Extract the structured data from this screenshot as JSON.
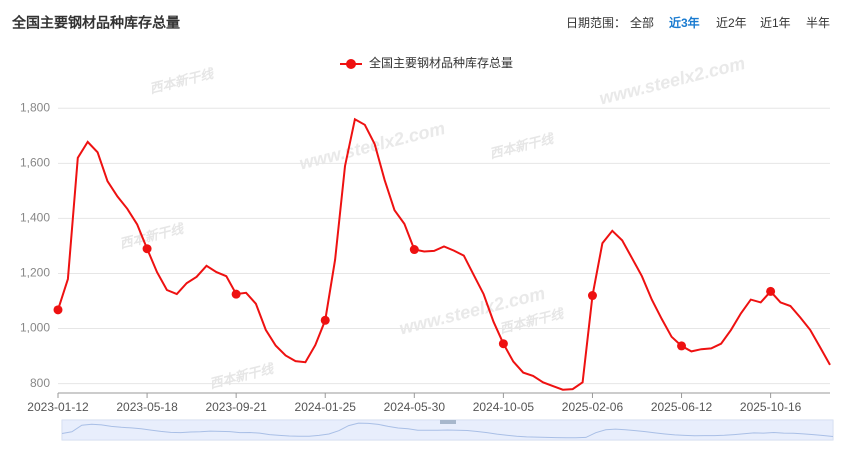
{
  "header": {
    "title": "全国主要钢材品种库存总量"
  },
  "date_range": {
    "label": "日期范围：",
    "options": [
      "全部",
      "近3年",
      "近2年",
      "近1年",
      "半年"
    ],
    "active": 1
  },
  "watermark": "www.steelx2.com",
  "watermark_logo": "西本新干线",
  "chart_data": {
    "type": "line",
    "categories": [
      "2023-01-12",
      null,
      null,
      null,
      null,
      null,
      null,
      null,
      null,
      "2023-05-18",
      null,
      null,
      null,
      null,
      null,
      null,
      null,
      null,
      "2023-09-21",
      null,
      null,
      null,
      null,
      null,
      null,
      null,
      null,
      "2024-01-25",
      null,
      null,
      null,
      null,
      null,
      null,
      null,
      null,
      "2024-05-30",
      null,
      null,
      null,
      null,
      null,
      null,
      null,
      null,
      "2024-10-05",
      null,
      null,
      null,
      null,
      null,
      null,
      null,
      null,
      "2025-02-06",
      null,
      null,
      null,
      null,
      null,
      null,
      null,
      null,
      "2025-06-12",
      null,
      null,
      null,
      null,
      null,
      null,
      null,
      null,
      "2025-10-16",
      null,
      null,
      null,
      null,
      null,
      null
    ],
    "series": [
      {
        "name": "全国主要钢材品种库存总量",
        "color": "#ee1111",
        "values": [
          1068,
          1180,
          1620,
          1678,
          1640,
          1535,
          1480,
          1435,
          1378,
          1290,
          1205,
          1140,
          1125,
          1165,
          1188,
          1228,
          1205,
          1190,
          1125,
          1130,
          1090,
          995,
          938,
          902,
          882,
          878,
          940,
          1030,
          1250,
          1590,
          1760,
          1740,
          1670,
          1540,
          1430,
          1380,
          1287,
          1280,
          1282,
          1298,
          1283,
          1265,
          1195,
          1125,
          1025,
          945,
          880,
          840,
          828,
          805,
          791,
          778,
          780,
          805,
          1120,
          1310,
          1355,
          1320,
          1255,
          1190,
          1105,
          1035,
          970,
          937,
          917,
          925,
          928,
          945,
          995,
          1055,
          1105,
          1095,
          1135,
          1095,
          1082,
          1040,
          995,
          932,
          868
        ]
      }
    ],
    "ylim": [
      766,
      1830
    ],
    "yticks": [
      800,
      {
        "value": 1000,
        "label": "1,000"
      },
      {
        "value": 1200,
        "label": "1,200"
      },
      {
        "value": 1400,
        "label": "1,400"
      },
      {
        "value": 1600,
        "label": "1,600"
      },
      {
        "value": 1800,
        "label": "1,800"
      }
    ],
    "grid": true
  }
}
